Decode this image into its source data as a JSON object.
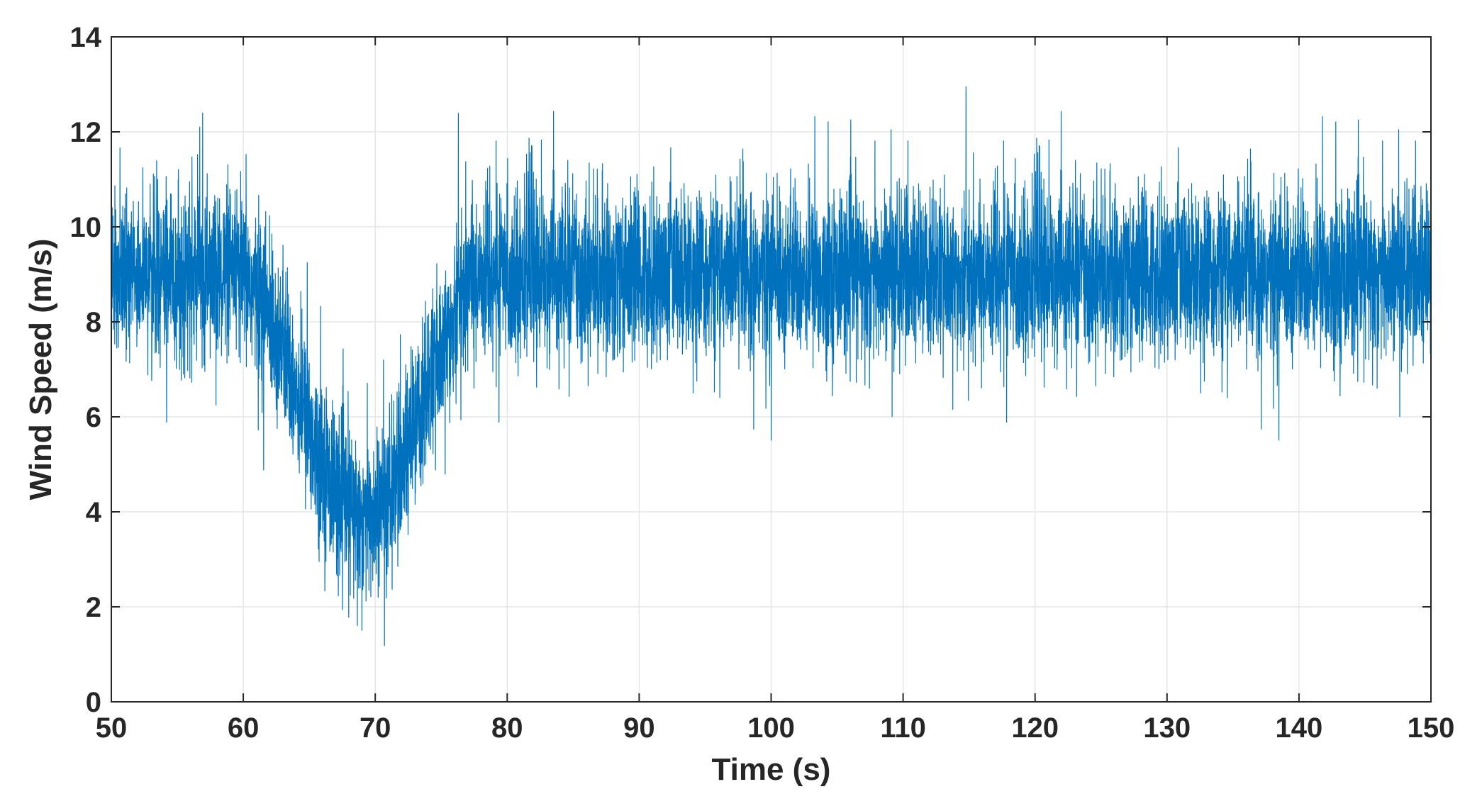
{
  "chart_data": {
    "type": "line",
    "title": "",
    "xlabel": "Time (s)",
    "ylabel": "Wind Speed (m/s)",
    "xlim": [
      50,
      150
    ],
    "ylim": [
      0,
      14
    ],
    "x_ticks": [
      "50",
      "60",
      "70",
      "80",
      "90",
      "100",
      "110",
      "120",
      "130",
      "140",
      "150"
    ],
    "y_ticks": [
      "0",
      "2",
      "4",
      "6",
      "8",
      "10",
      "12",
      "14"
    ],
    "grid": true,
    "legend": "none",
    "series_color": "#0072BD",
    "series": [
      {
        "name": "",
        "sample_interval": 0.5,
        "values": [
          9.0,
          9.0,
          9.0,
          9.0,
          9.0,
          9.0,
          9.0,
          9.0,
          9.0,
          9.0,
          9.0,
          9.0,
          9.0,
          9.0,
          9.0,
          9.0,
          9.0,
          9.0,
          9.0,
          9.0,
          8.9,
          8.8,
          8.6,
          8.4,
          8.1,
          7.8,
          7.4,
          7.0,
          6.6,
          6.2,
          5.8,
          5.4,
          5.0,
          4.7,
          4.4,
          4.2,
          4.05,
          3.95,
          3.9,
          3.9,
          3.95,
          4.1,
          4.3,
          4.6,
          5.0,
          5.4,
          5.8,
          6.2,
          6.6,
          7.0,
          7.4,
          7.8,
          8.2,
          8.6,
          8.9,
          9.0,
          9.0,
          9.0,
          9.0,
          9.0,
          9.0,
          9.0,
          9.0,
          9.0,
          9.0,
          9.0,
          9.0,
          9.0,
          9.0,
          9.0,
          9.0,
          9.0,
          9.0,
          9.0,
          9.0,
          9.0,
          9.0,
          9.0,
          9.0,
          9.0,
          9.0,
          9.0,
          9.0,
          9.0,
          9.0,
          9.0,
          9.0,
          9.0,
          9.0,
          9.0,
          9.0,
          9.0,
          9.0,
          9.0,
          9.0,
          9.0,
          9.0,
          9.0,
          9.0,
          9.0,
          9.0,
          9.0,
          9.0,
          9.0,
          9.0,
          9.0,
          9.0,
          9.0,
          9.0,
          9.0,
          9.0,
          9.0,
          9.0,
          9.0,
          9.0,
          9.0,
          9.0,
          9.0,
          9.0,
          9.0,
          9.0,
          9.0,
          9.0,
          9.0,
          9.0,
          9.0,
          9.0,
          9.0,
          9.0,
          9.0,
          9.0,
          9.0,
          9.0,
          9.0,
          9.0,
          9.0,
          9.0,
          9.0,
          9.0,
          9.0,
          9.0,
          9.0,
          9.0,
          9.0,
          9.0,
          9.0,
          9.0,
          9.0,
          9.0,
          9.0,
          9.0,
          9.0,
          9.0,
          9.0,
          9.0,
          9.0,
          9.0,
          9.0,
          9.0,
          9.0,
          9.0,
          9.0,
          9.0,
          9.0,
          9.0,
          9.0,
          9.0,
          9.0,
          9.0,
          9.0,
          9.0,
          9.0,
          9.0,
          9.0,
          9.0,
          9.0,
          9.0,
          9.0,
          9.0,
          9.0,
          9.0,
          9.0,
          9.0,
          9.0,
          9.0,
          9.0,
          9.0,
          9.0,
          9.0,
          9.0,
          9.0,
          9.0,
          9.0,
          9.0,
          9.0,
          9.0,
          9.0,
          9.0,
          9.0,
          9.0,
          9.0
        ]
      }
    ]
  }
}
